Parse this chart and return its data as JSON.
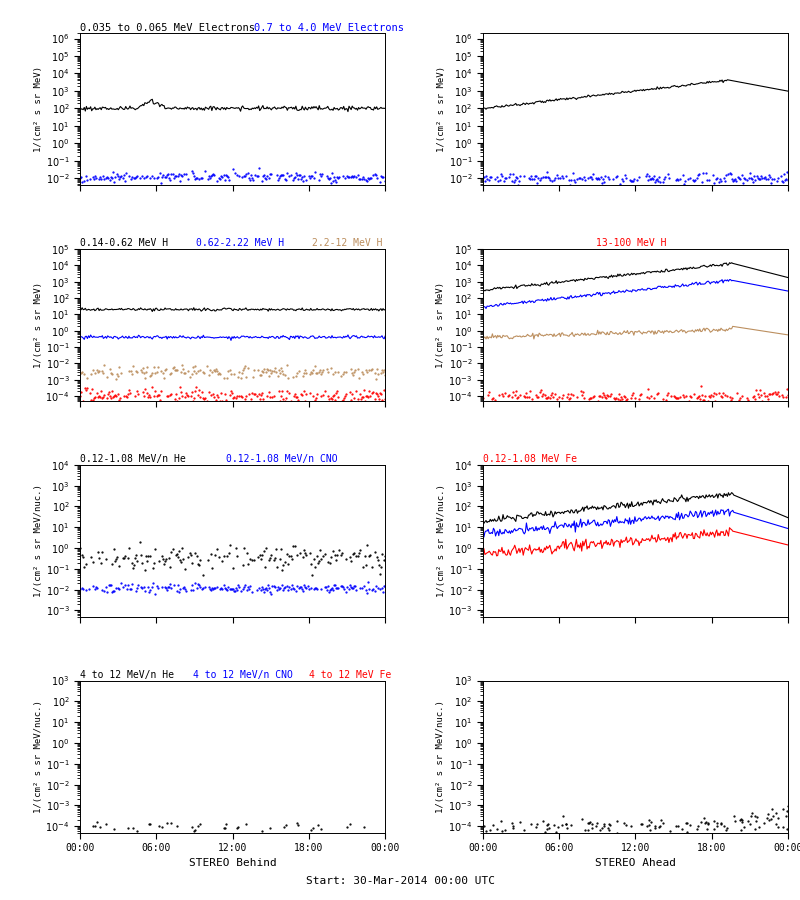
{
  "titles_row1": [
    "0.035 to 0.065 MeV Electrons",
    "0.7 to 4.0 MeV Electrons"
  ],
  "titles_row1_colors": [
    "black",
    "blue"
  ],
  "titles_row2": [
    "0.14-0.62 MeV H",
    "0.62-2.22 MeV H",
    "2.2-12 MeV H",
    "13-100 MeV H"
  ],
  "titles_row2_colors": [
    "black",
    "blue",
    "#bc8f5f",
    "red"
  ],
  "titles_row3": [
    "0.12-1.08 MeV/n He",
    "0.12-1.08 MeV/n CNO",
    "0.12-1.08 MeV Fe"
  ],
  "titles_row3_colors": [
    "black",
    "blue",
    "red"
  ],
  "titles_row4": [
    "4 to 12 MeV/n He",
    "4 to 12 MeV/n CNO",
    "4 to 12 MeV Fe"
  ],
  "titles_row4_colors": [
    "black",
    "blue",
    "red"
  ],
  "xlabel_left": "STEREO Behind",
  "xlabel_right": "STEREO Ahead",
  "xlabel_center": "Start: 30-Mar-2014 00:00 UTC",
  "xtick_labels": [
    "00:00",
    "06:00",
    "12:00",
    "18:00",
    "00:00"
  ],
  "ylabel_mev": "1/(cm² s sr MeV)",
  "ylabel_mevnuc": "1/(cm² s sr MeV/nuc.)",
  "n_points": 288,
  "row1_ylim": [
    0.004,
    2000000.0
  ],
  "row2_ylim": [
    5e-05,
    100000.0
  ],
  "row3_ylim": [
    0.0005,
    10000.0
  ],
  "row4_ylim": [
    5e-05,
    1000.0
  ]
}
